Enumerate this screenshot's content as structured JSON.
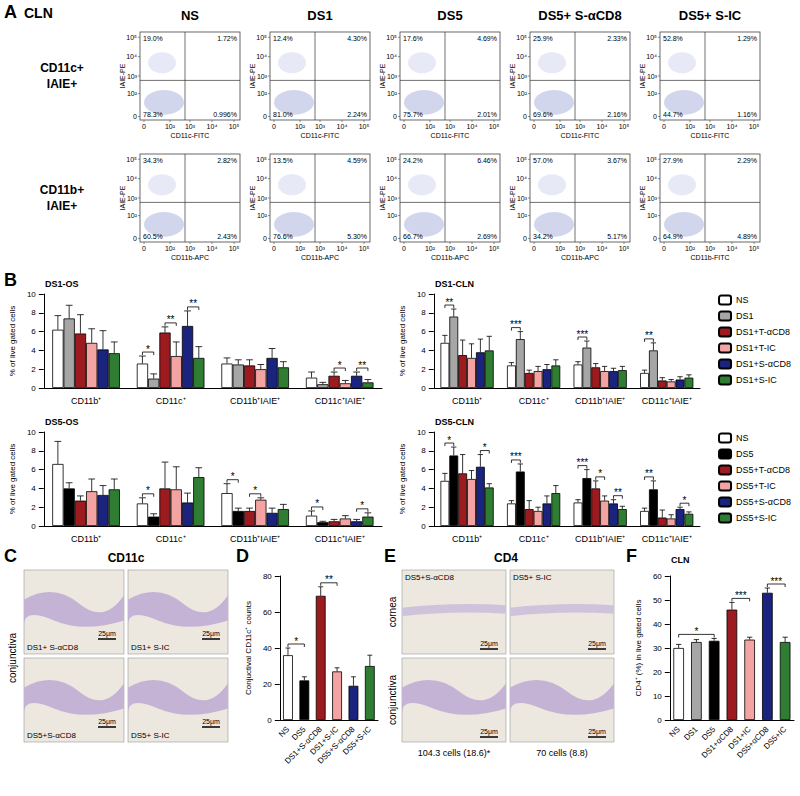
{
  "panel_labels": [
    "A",
    "B",
    "C",
    "D",
    "E",
    "F"
  ],
  "flow": {
    "title": "CLN",
    "columns": [
      "NS",
      "DS1",
      "DS5",
      "DS5+ S-αCD8",
      "DS5+ S-IC"
    ],
    "axis_ticks": [
      "0",
      "10²",
      "10³",
      "10⁴",
      "10⁵"
    ],
    "rows": [
      {
        "label": [
          "CD11c+",
          "IAIE+"
        ],
        "y_label": "IAIE-PE",
        "x_labels": [
          "CD11c-FITC",
          "CD11c-FITC",
          "CD11c-FITC",
          "CD11c-FITC",
          "CD11c-FITC"
        ],
        "quadrants": [
          [
            "19.0%",
            "1.72%",
            "78.3%",
            "0.996%"
          ],
          [
            "12.4%",
            "4.30%",
            "81.0%",
            "2.24%"
          ],
          [
            "17.6%",
            "4.69%",
            "75.7%",
            "2.01%"
          ],
          [
            "25.9%",
            "2.33%",
            "69.6%",
            "2.16%"
          ],
          [
            "52.8%",
            "1.29%",
            "44.7%",
            "1.16%"
          ]
        ]
      },
      {
        "label": [
          "CD11b+",
          "IAIE+"
        ],
        "y_label": "IAIE-PE",
        "x_labels": [
          "CD11b-APC",
          "CD11b-APC",
          "CD11b-APC",
          "CD11b-APC",
          "CD11b-FITC"
        ],
        "quadrants": [
          [
            "34.3%",
            "2.82%",
            "60.5%",
            "2.43%"
          ],
          [
            "13.5%",
            "4.59%",
            "76.6%",
            "5.30%"
          ],
          [
            "24.2%",
            "6.46%",
            "66.7%",
            "2.69%"
          ],
          [
            "57.0%",
            "3.67%",
            "34.2%",
            "5.17%"
          ],
          [
            "27.9%",
            "2.29%",
            "64.9%",
            "4.89%"
          ]
        ]
      }
    ]
  },
  "chart_data": [
    {
      "type": "bar",
      "title": "DS1-OS",
      "categories": [
        "CD11b⁺",
        "CD11c⁺",
        "CD11b⁺IAIE⁺",
        "CD11c⁺IAIE⁺"
      ],
      "y_label": "% of live gated cells",
      "ylim": [
        0,
        10
      ],
      "yticks": [
        0,
        2,
        4,
        6,
        8,
        10
      ],
      "grid": false,
      "series": [
        {
          "name": "NS",
          "color": "#ffffff",
          "values": [
            6.2,
            2.6,
            2.6,
            1.1
          ],
          "errors": [
            1.5,
            0.8,
            0.6,
            0.6
          ]
        },
        {
          "name": "DS1",
          "color": "#a6a6a6",
          "values": [
            7.4,
            1.0,
            2.5,
            0.4
          ],
          "errors": [
            1.4,
            0.5,
            0.5,
            0.2
          ]
        },
        {
          "name": "DS1+T-αCD8",
          "color": "#9b1b1e",
          "values": [
            5.8,
            5.9,
            2.4,
            1.3
          ],
          "errors": [
            2.0,
            0.6,
            0.6,
            0.4
          ]
        },
        {
          "name": "DS1+T-IC",
          "color": "#f4a3a3",
          "values": [
            4.8,
            3.4,
            2.0,
            0.5
          ],
          "errors": [
            1.5,
            1.5,
            0.5,
            0.3
          ]
        },
        {
          "name": "DS1+S-αCD8",
          "color": "#1a237e",
          "values": [
            4.1,
            6.6,
            3.2,
            1.3
          ],
          "errors": [
            2.0,
            1.6,
            1.0,
            0.4
          ]
        },
        {
          "name": "DS1+S-IC",
          "color": "#2e7d32",
          "values": [
            3.7,
            3.2,
            2.2,
            0.6
          ],
          "errors": [
            1.2,
            1.2,
            0.6,
            0.3
          ]
        }
      ],
      "annotations": [
        {
          "text": "*",
          "category": "CD11c⁺",
          "from": "NS",
          "to": "DS1"
        },
        {
          "text": "**",
          "category": "CD11c⁺",
          "from": "DS1+T-αCD8",
          "to": "DS1+T-IC"
        },
        {
          "text": "**",
          "category": "CD11c⁺",
          "from": "DS1+S-αCD8",
          "to": "DS1+S-IC"
        },
        {
          "text": "*",
          "category": "CD11c⁺IAIE⁺",
          "from": "DS1+T-αCD8",
          "to": "DS1+T-IC"
        },
        {
          "text": "**",
          "category": "CD11c⁺IAIE⁺",
          "from": "DS1+S-αCD8",
          "to": "DS1+S-IC"
        }
      ]
    },
    {
      "type": "bar",
      "title": "DS1-CLN",
      "categories": [
        "CD11b⁺",
        "CD11c⁺",
        "CD11b⁺IAIE⁺",
        "CD11c⁺IAIE⁺"
      ],
      "y_label": "% of live gated cells",
      "ylim": [
        0,
        10
      ],
      "yticks": [
        0,
        2,
        4,
        6,
        8,
        10
      ],
      "grid": false,
      "legend": "right",
      "series": [
        {
          "name": "NS",
          "color": "#ffffff",
          "values": [
            4.8,
            2.4,
            2.5,
            1.6
          ],
          "errors": [
            0.8,
            0.3,
            0.3,
            0.3
          ]
        },
        {
          "name": "DS1",
          "color": "#a6a6a6",
          "values": [
            7.6,
            5.2,
            4.3,
            4.0
          ],
          "errors": [
            0.8,
            0.8,
            0.7,
            0.8
          ]
        },
        {
          "name": "DS1+T-αCD8",
          "color": "#9b1b1e",
          "values": [
            3.5,
            1.6,
            2.2,
            0.8
          ],
          "errors": [
            1.6,
            0.3,
            0.4,
            0.3
          ]
        },
        {
          "name": "DS1+T-IC",
          "color": "#f4a3a3",
          "values": [
            3.2,
            1.8,
            1.8,
            0.7
          ],
          "errors": [
            1.5,
            0.5,
            0.5,
            0.2
          ]
        },
        {
          "name": "DS1+S-αCD8",
          "color": "#1a237e",
          "values": [
            3.8,
            2.0,
            1.8,
            0.9
          ],
          "errors": [
            1.4,
            0.5,
            0.3,
            0.3
          ]
        },
        {
          "name": "DS1+S-IC",
          "color": "#2e7d32",
          "values": [
            4.0,
            2.4,
            1.9,
            1.1
          ],
          "errors": [
            1.5,
            0.6,
            0.4,
            0.3
          ]
        }
      ],
      "annotations": [
        {
          "text": "**",
          "category": "CD11b⁺",
          "from": "NS",
          "to": "DS1"
        },
        {
          "text": "***",
          "category": "CD11c⁺",
          "from": "NS",
          "to": "DS1"
        },
        {
          "text": "***",
          "category": "CD11b⁺IAIE⁺",
          "from": "NS",
          "to": "DS1"
        },
        {
          "text": "**",
          "category": "CD11c⁺IAIE⁺",
          "from": "NS",
          "to": "DS1"
        }
      ]
    },
    {
      "type": "bar",
      "title": "DS5-OS",
      "categories": [
        "CD11b⁺",
        "CD11c⁺",
        "CD11b⁺IAIE⁺",
        "CD11c⁺IAIE⁺"
      ],
      "y_label": "% of live gated cells",
      "ylim": [
        0,
        10
      ],
      "yticks": [
        0,
        2,
        4,
        6,
        8,
        10
      ],
      "grid": false,
      "series": [
        {
          "name": "NS",
          "color": "#ffffff",
          "values": [
            6.6,
            2.4,
            3.5,
            1.1
          ],
          "errors": [
            2.4,
            0.6,
            1.0,
            0.5
          ]
        },
        {
          "name": "DS5",
          "color": "#000000",
          "values": [
            4.0,
            1.0,
            1.6,
            0.4
          ],
          "errors": [
            0.6,
            0.3,
            0.3,
            0.1
          ]
        },
        {
          "name": "DS5+T-αCD8",
          "color": "#9b1b1e",
          "values": [
            2.7,
            4.0,
            1.6,
            0.5
          ],
          "errors": [
            0.5,
            2.8,
            0.3,
            0.2
          ]
        },
        {
          "name": "DS5+T-IC",
          "color": "#f4a3a3",
          "values": [
            3.7,
            3.9,
            2.8,
            0.8
          ],
          "errors": [
            1.3,
            2.4,
            0.2,
            0.3
          ]
        },
        {
          "name": "DS5+S-αCD8",
          "color": "#1a237e",
          "values": [
            3.3,
            2.5,
            1.4,
            0.5
          ],
          "errors": [
            1.0,
            1.0,
            0.5,
            0.2
          ]
        },
        {
          "name": "DS5+S-IC",
          "color": "#2e7d32",
          "values": [
            3.9,
            5.2,
            1.8,
            1.0
          ],
          "errors": [
            1.1,
            1.0,
            0.5,
            0.4
          ]
        }
      ],
      "annotations": [
        {
          "text": "*",
          "category": "CD11c⁺",
          "from": "NS",
          "to": "DS5"
        },
        {
          "text": "*",
          "category": "CD11b⁺IAIE⁺",
          "from": "NS",
          "to": "DS5"
        },
        {
          "text": "*",
          "category": "CD11b⁺IAIE⁺",
          "from": "DS5+T-αCD8",
          "to": "DS5+T-IC"
        },
        {
          "text": "*",
          "category": "CD11c⁺IAIE⁺",
          "from": "NS",
          "to": "DS5"
        },
        {
          "text": "*",
          "category": "CD11c⁺IAIE⁺",
          "from": "DS5+S-αCD8",
          "to": "DS5+S-IC"
        }
      ]
    },
    {
      "type": "bar",
      "title": "DS5-CLN",
      "categories": [
        "CD11b⁺",
        "CD11c⁺",
        "CD11b⁺IAIE⁺",
        "CD11c⁺IAIE⁺"
      ],
      "y_label": "% of live gated cells",
      "ylim": [
        0,
        10
      ],
      "yticks": [
        0,
        2,
        4,
        6,
        8,
        10
      ],
      "grid": false,
      "legend": "right",
      "series": [
        {
          "name": "NS",
          "color": "#ffffff",
          "values": [
            4.8,
            2.4,
            2.5,
            1.6
          ],
          "errors": [
            0.8,
            0.3,
            0.3,
            0.3
          ]
        },
        {
          "name": "DS5",
          "color": "#000000",
          "values": [
            7.5,
            5.8,
            5.1,
            3.9
          ],
          "errors": [
            0.9,
            0.8,
            0.9,
            0.9
          ]
        },
        {
          "name": "DS5+T-αCD8",
          "color": "#9b1b1e",
          "values": [
            5.6,
            1.8,
            4.0,
            0.9
          ],
          "errors": [
            2.0,
            0.9,
            0.8,
            0.8
          ]
        },
        {
          "name": "DS5+T-IC",
          "color": "#f4a3a3",
          "values": [
            5.0,
            1.6,
            2.7,
            0.8
          ],
          "errors": [
            0.9,
            0.4,
            0.5,
            0.4
          ]
        },
        {
          "name": "DS5+S-αCD8",
          "color": "#1a237e",
          "values": [
            6.3,
            2.4,
            2.4,
            1.8
          ],
          "errors": [
            1.3,
            0.8,
            0.4,
            0.2
          ]
        },
        {
          "name": "DS5+S-IC",
          "color": "#2e7d32",
          "values": [
            4.1,
            3.5,
            1.8,
            1.3
          ],
          "errors": [
            0.4,
            0.8,
            0.3,
            0.2
          ]
        }
      ],
      "annotations": [
        {
          "text": "*",
          "category": "CD11b⁺",
          "from": "NS",
          "to": "DS5"
        },
        {
          "text": "*",
          "category": "CD11b⁺",
          "from": "DS5+S-αCD8",
          "to": "DS5+S-IC"
        },
        {
          "text": "***",
          "category": "CD11c⁺",
          "from": "NS",
          "to": "DS5"
        },
        {
          "text": "***",
          "category": "CD11b⁺IAIE⁺",
          "from": "NS",
          "to": "DS5"
        },
        {
          "text": "*",
          "category": "CD11b⁺IAIE⁺",
          "from": "DS5+T-αCD8",
          "to": "DS5+T-IC"
        },
        {
          "text": "**",
          "category": "CD11b⁺IAIE⁺",
          "from": "DS5+S-αCD8",
          "to": "DS5+S-IC"
        },
        {
          "text": "**",
          "category": "CD11c⁺IAIE⁺",
          "from": "NS",
          "to": "DS5"
        },
        {
          "text": "*",
          "category": "CD11c⁺IAIE⁺",
          "from": "DS5+S-αCD8",
          "to": "DS5+S-IC"
        }
      ]
    },
    {
      "type": "bar",
      "categories": [
        "NS",
        "DS5",
        "DS1+S-αCD8",
        "DS1+S-IC",
        "DS5+S-αCD8",
        "DS5+S-IC"
      ],
      "y_label": "Conjuctival CD11c⁺ counts",
      "ylim": [
        0,
        80
      ],
      "yticks": [
        0,
        20,
        40,
        60,
        80
      ],
      "grid": false,
      "values": [
        36,
        22,
        69,
        27,
        19,
        30
      ],
      "errors": [
        4,
        2,
        5,
        2,
        5,
        6
      ],
      "colors": [
        "#ffffff",
        "#000000",
        "#9b1b1e",
        "#f4a3a3",
        "#1a237e",
        "#2e7d32"
      ],
      "annotations": [
        {
          "text": "*",
          "from": "NS",
          "to": "DS5"
        },
        {
          "text": "**",
          "from": "DS1+S-αCD8",
          "to": "DS1+S-IC"
        }
      ]
    },
    {
      "type": "bar",
      "title": "CLN",
      "categories": [
        "NS",
        "DS1",
        "DS5",
        "DS1+αCD8",
        "DS1+IC",
        "DS5+αCD8",
        "DS5+IC"
      ],
      "y_label": "CD4⁺ (%) in live gated cells",
      "ylim": [
        0,
        60
      ],
      "yticks": [
        0,
        10,
        20,
        30,
        40,
        50,
        60
      ],
      "grid": false,
      "values": [
        30,
        32.5,
        33,
        46,
        33.5,
        53,
        32.5
      ],
      "errors": [
        1.5,
        1,
        1,
        3,
        1,
        2,
        2
      ],
      "colors": [
        "#ffffff",
        "#a6a6a6",
        "#000000",
        "#9b1b1e",
        "#f4a3a3",
        "#1a237e",
        "#2e7d32"
      ],
      "annotations": [
        {
          "text": "*",
          "from": "NS",
          "to": "DS5"
        },
        {
          "text": "***",
          "from": "DS1+αCD8",
          "to": "DS1+IC"
        },
        {
          "text": "***",
          "from": "DS5+αCD8",
          "to": "DS5+IC"
        }
      ]
    }
  ],
  "images": {
    "C": {
      "title": "CD11c",
      "side_label": "conjunctiva",
      "tile_labels": [
        "DS1+ S-αCD8",
        "DS1+ S-IC",
        "DS5+S-αCD8",
        "DS5+ S-IC"
      ],
      "scale_bar": "25μm"
    },
    "E": {
      "title": "CD4",
      "row_labels": [
        "cornea",
        "conjunctiva"
      ],
      "tile_labels": [
        "DS5+S-αCD8",
        "DS5+ S-IC"
      ],
      "captions": [
        "104.3 cells (18.6)*",
        "70 cells (8.8)"
      ],
      "scale_bar": "25μm"
    }
  }
}
